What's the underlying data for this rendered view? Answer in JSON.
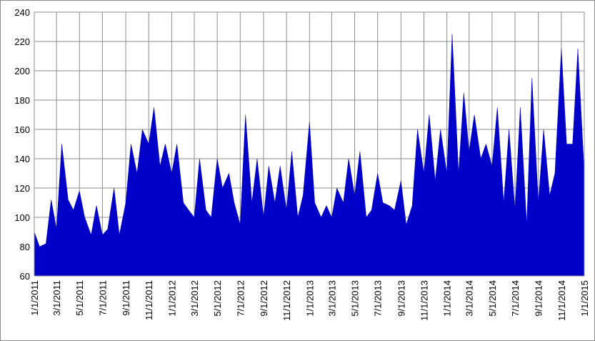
{
  "chart_data": {
    "type": "area",
    "color": "#0000c8",
    "grid": true,
    "x": [
      "1/1/2011",
      "1/15/2011",
      "2/1/2011",
      "2/15/2011",
      "3/1/2011",
      "3/15/2011",
      "4/1/2011",
      "4/15/2011",
      "5/1/2011",
      "5/15/2011",
      "6/1/2011",
      "6/15/2011",
      "7/1/2011",
      "7/15/2011",
      "8/1/2011",
      "8/15/2011",
      "9/1/2011",
      "9/15/2011",
      "10/1/2011",
      "10/15/2011",
      "11/1/2011",
      "11/15/2011",
      "12/1/2011",
      "12/15/2011",
      "1/1/2012",
      "1/15/2012",
      "2/1/2012",
      "2/15/2012",
      "3/1/2012",
      "3/15/2012",
      "4/1/2012",
      "4/15/2012",
      "5/1/2012",
      "5/15/2012",
      "6/1/2012",
      "6/15/2012",
      "7/1/2012",
      "7/15/2012",
      "8/1/2012",
      "8/15/2012",
      "9/1/2012",
      "9/15/2012",
      "10/1/2012",
      "10/15/2012",
      "11/1/2012",
      "11/15/2012",
      "12/1/2012",
      "12/15/2012",
      "1/1/2013",
      "1/15/2013",
      "2/1/2013",
      "2/15/2013",
      "3/1/2013",
      "3/15/2013",
      "4/1/2013",
      "4/15/2013",
      "5/1/2013",
      "5/15/2013",
      "6/1/2013",
      "6/15/2013",
      "7/1/2013",
      "7/15/2013",
      "8/1/2013",
      "8/15/2013",
      "9/1/2013",
      "9/15/2013",
      "10/1/2013",
      "10/15/2013",
      "11/1/2013",
      "11/15/2013",
      "12/1/2013",
      "12/15/2013",
      "1/1/2014",
      "1/15/2014",
      "2/1/2014",
      "2/15/2014",
      "3/1/2014",
      "3/15/2014",
      "4/1/2014",
      "4/15/2014",
      "5/1/2014",
      "5/15/2014",
      "6/1/2014",
      "6/15/2014",
      "7/1/2014",
      "7/15/2014",
      "8/1/2014",
      "8/15/2014",
      "9/1/2014",
      "9/15/2014",
      "10/1/2014",
      "10/15/2014",
      "11/1/2014",
      "11/15/2014",
      "12/1/2014",
      "12/15/2014",
      "1/1/2015"
    ],
    "values": [
      90,
      80,
      82,
      112,
      92,
      150,
      112,
      105,
      118,
      100,
      88,
      108,
      88,
      92,
      120,
      88,
      110,
      150,
      130,
      160,
      150,
      175,
      135,
      150,
      130,
      150,
      110,
      105,
      100,
      140,
      105,
      100,
      140,
      120,
      130,
      110,
      95,
      170,
      110,
      140,
      100,
      135,
      110,
      135,
      105,
      145,
      100,
      115,
      165,
      110,
      100,
      108,
      100,
      120,
      110,
      140,
      115,
      145,
      100,
      105,
      130,
      110,
      108,
      105,
      125,
      95,
      108,
      160,
      130,
      170,
      125,
      160,
      130,
      225,
      130,
      185,
      145,
      170,
      140,
      150,
      135,
      175,
      110,
      160,
      105,
      175,
      95,
      195,
      110,
      160,
      115,
      130,
      215,
      150,
      150,
      215,
      130
    ],
    "xlim": [
      "1/1/2011",
      "1/1/2015"
    ],
    "xticks": [
      "1/1/2011",
      "3/1/2011",
      "5/1/2011",
      "7/1/2011",
      "9/1/2011",
      "11/1/2011",
      "1/1/2012",
      "3/1/2012",
      "5/1/2012",
      "7/1/2012",
      "9/1/2012",
      "11/1/2012",
      "1/1/2013",
      "3/1/2013",
      "5/1/2013",
      "7/1/2013",
      "9/1/2013",
      "11/1/2013",
      "1/1/2014",
      "3/1/2014",
      "5/1/2014",
      "7/1/2014",
      "9/1/2014",
      "11/1/2014",
      "1/1/2015"
    ],
    "ylim": [
      60,
      240
    ],
    "yticks": [
      60,
      80,
      100,
      120,
      140,
      160,
      180,
      200,
      220,
      240
    ]
  }
}
